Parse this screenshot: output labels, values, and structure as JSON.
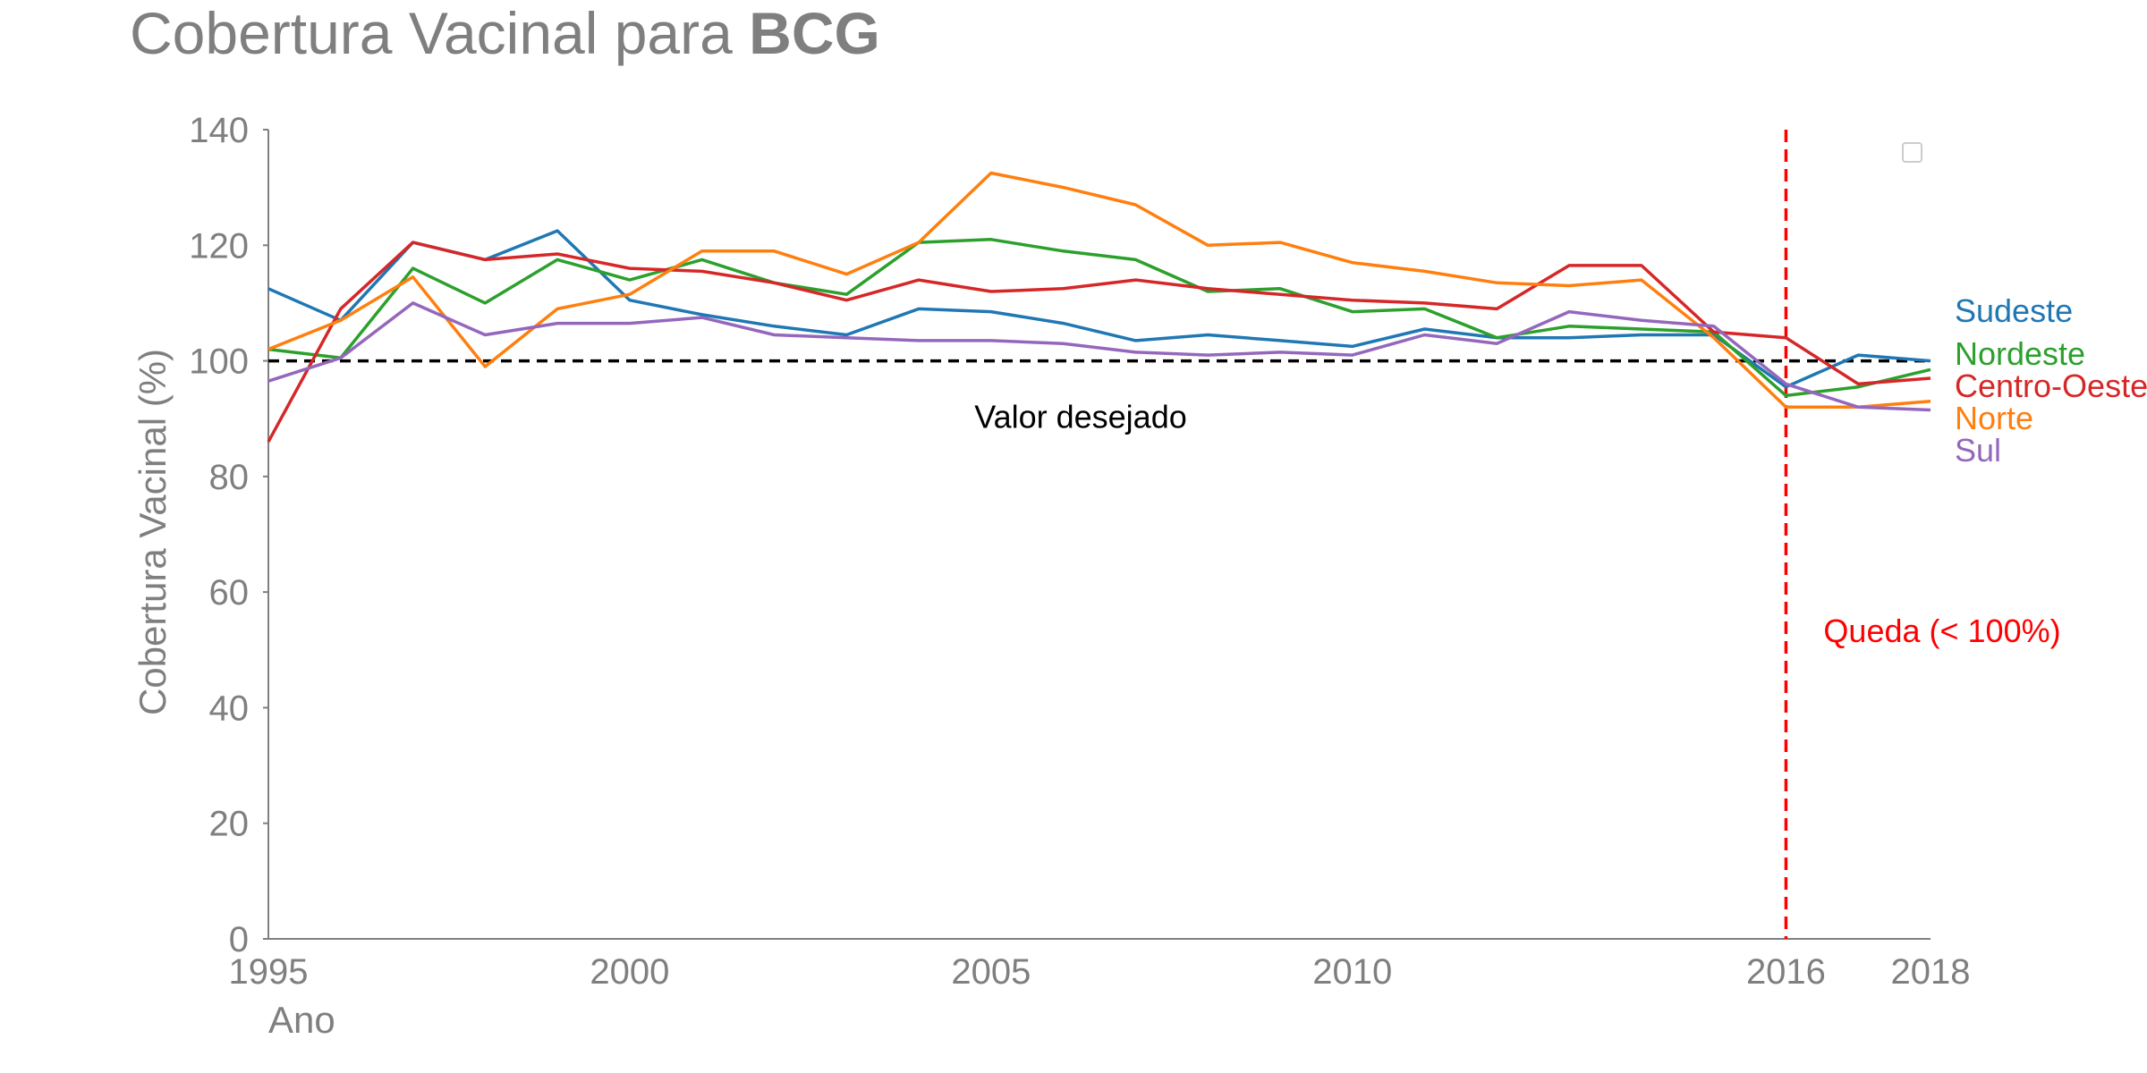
{
  "chart_data": {
    "type": "line",
    "title_regular": "Cobertura Vacinal para ",
    "title_bold": "BCG",
    "xlabel": "Ano",
    "ylabel": "Cobertura Vacinal (%)",
    "xlim": [
      1995,
      2018
    ],
    "ylim": [
      0,
      140
    ],
    "xticks": [
      1995,
      2000,
      2005,
      2010,
      2016,
      2018
    ],
    "yticks": [
      0,
      20,
      40,
      60,
      80,
      100,
      120,
      140
    ],
    "grid": false,
    "x": [
      1995,
      1996,
      1997,
      1998,
      1999,
      2000,
      2001,
      2002,
      2003,
      2004,
      2005,
      2006,
      2007,
      2008,
      2009,
      2010,
      2011,
      2012,
      2013,
      2014,
      2015,
      2016,
      2017,
      2018
    ],
    "series": [
      {
        "name": "Sudeste",
        "color": "#1f77b4",
        "values": [
          112.5,
          107,
          120.5,
          117.5,
          122.5,
          110.5,
          108,
          106,
          104.5,
          109,
          108.5,
          106.5,
          103.5,
          104.5,
          103.5,
          102.5,
          105.5,
          104,
          104,
          104.5,
          104.5,
          95.5,
          101,
          100
        ]
      },
      {
        "name": "Nordeste",
        "color": "#2ca02c",
        "values": [
          102,
          100.5,
          116,
          110,
          117.5,
          114,
          117.5,
          113.5,
          111.5,
          120.5,
          121,
          119,
          117.5,
          112,
          112.5,
          108.5,
          109,
          104,
          106,
          105.5,
          105,
          94,
          95.5,
          98.5
        ]
      },
      {
        "name": "Centro-Oeste",
        "color": "#d62728",
        "values": [
          86,
          109,
          120.5,
          117.5,
          118.5,
          116,
          115.5,
          113.5,
          110.5,
          114,
          112,
          112.5,
          114,
          112.5,
          111.5,
          110.5,
          110,
          109,
          116.5,
          116.5,
          105,
          104,
          96,
          97
        ]
      },
      {
        "name": "Norte",
        "color": "#ff7f0e",
        "values": [
          102,
          107,
          114.5,
          99,
          109,
          111.5,
          119,
          119,
          115,
          120.5,
          132.5,
          130,
          127,
          120,
          120.5,
          117,
          115.5,
          113.5,
          113,
          114,
          104,
          92,
          92,
          93
        ]
      },
      {
        "name": "Sul",
        "color": "#9467bd",
        "values": [
          96.5,
          100.5,
          110,
          104.5,
          106.5,
          106.5,
          107.5,
          104.5,
          104,
          103.5,
          103.5,
          103,
          101.5,
          101,
          101.5,
          101,
          104.5,
          103,
          108.5,
          107,
          106,
          96,
          92,
          91.5
        ]
      }
    ],
    "reference_line": {
      "y": 100,
      "label": "Valor desejado",
      "color": "#000000"
    },
    "vertical_line": {
      "x": 2016,
      "label": "Queda (< 100%)",
      "color": "#ff0000"
    },
    "legend": {
      "placement": "top-right",
      "entries": []
    }
  }
}
